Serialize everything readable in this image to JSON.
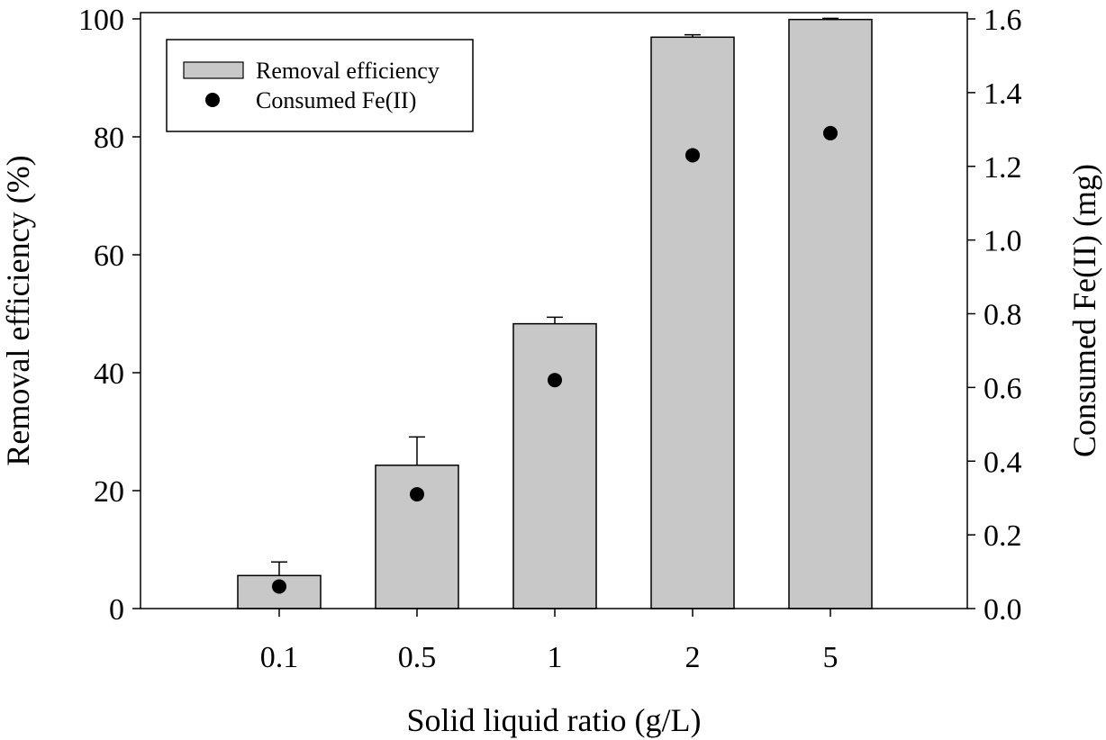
{
  "chart_data": {
    "type": "bar",
    "categories": [
      "0.1",
      "0.5",
      "1",
      "2",
      "5"
    ],
    "series": [
      {
        "name": "Removal efficiency",
        "kind": "bar",
        "axis": "left",
        "values": [
          5.6,
          24.3,
          48.3,
          96.9,
          99.9
        ],
        "errors": [
          2.3,
          4.8,
          1.1,
          0.4,
          0.2
        ]
      },
      {
        "name": "Consumed Fe(II)",
        "kind": "scatter",
        "axis": "right",
        "values": [
          0.06,
          0.31,
          0.62,
          1.23,
          1.29
        ]
      }
    ],
    "xlabel": "Solid liquid ratio (g/L)",
    "ylabel": "Removal efficiency (%)",
    "y2label": "Consumed Fe(II) (mg)",
    "ylim": [
      0,
      100
    ],
    "y2lim": [
      0,
      1.6
    ],
    "yticks": [
      "0",
      "20",
      "40",
      "60",
      "80",
      "100"
    ],
    "y2ticks": [
      "0.0",
      "0.2",
      "0.4",
      "0.6",
      "0.8",
      "1.0",
      "1.2",
      "1.4",
      "1.6"
    ],
    "legend": {
      "position": "top-left",
      "entries": [
        "Removal efficiency",
        "Consumed Fe(II)"
      ]
    },
    "grid": false
  },
  "colors": {
    "bar_fill": "#c8c8c8",
    "bar_stroke": "#000000",
    "marker": "#000000",
    "axis": "#000000"
  }
}
